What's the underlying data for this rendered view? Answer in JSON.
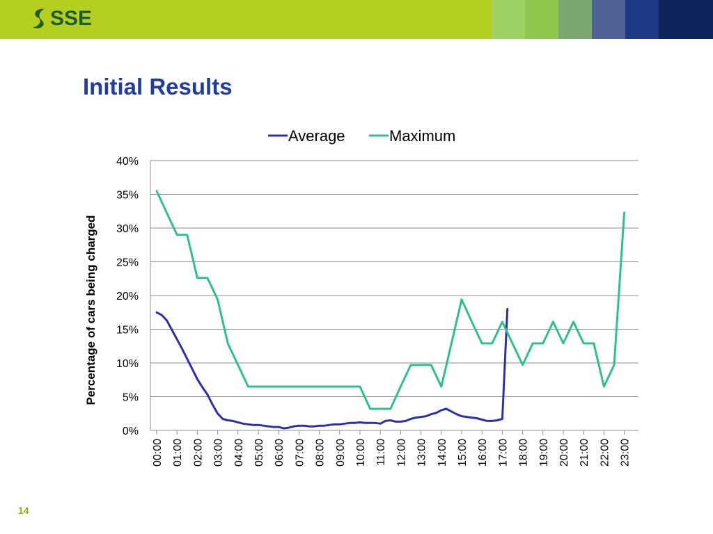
{
  "header": {
    "logo_text": "SSE",
    "colors": {
      "bar": "#b5cf21",
      "blocks": [
        "#9fd264",
        "#8fc84e",
        "#7aa66f",
        "#4f6295",
        "#1c3a84",
        "#0c2459"
      ]
    }
  },
  "slide": {
    "title": "Initial Results",
    "page_number": "14"
  },
  "chart_data": {
    "type": "line",
    "ylabel": "Percentage of cars being charged",
    "ylim": [
      0,
      40
    ],
    "yticks": [
      0,
      5,
      10,
      15,
      20,
      25,
      30,
      35,
      40
    ],
    "ytick_labels": [
      "0%",
      "5%",
      "10%",
      "15%",
      "20%",
      "25%",
      "30%",
      "35%",
      "40%"
    ],
    "x_range": [
      0,
      23.5
    ],
    "xtick_labels": [
      "00:00",
      "01:00",
      "02:00",
      "03:00",
      "04:00",
      "05:00",
      "06:00",
      "07:00",
      "08:00",
      "09:00",
      "10:00",
      "11:00",
      "12:00",
      "13:00",
      "14:00",
      "15:00",
      "16:00",
      "17:00",
      "18:00",
      "19:00",
      "20:00",
      "21:00",
      "22:00",
      "23:00"
    ],
    "grid": true,
    "legend_position": "top",
    "series": [
      {
        "name": "Average",
        "color": "#2e2ea8",
        "points": [
          [
            0,
            17.5
          ],
          [
            0.25,
            17.1
          ],
          [
            0.5,
            16.3
          ],
          [
            0.75,
            14.9
          ],
          [
            1,
            13.5
          ],
          [
            1.25,
            12.1
          ],
          [
            1.5,
            10.6
          ],
          [
            1.75,
            9.1
          ],
          [
            2,
            7.6
          ],
          [
            2.25,
            6.4
          ],
          [
            2.5,
            5.3
          ],
          [
            2.75,
            3.8
          ],
          [
            3,
            2.5
          ],
          [
            3.25,
            1.7
          ],
          [
            3.5,
            1.5
          ],
          [
            3.75,
            1.4
          ],
          [
            4,
            1.2
          ],
          [
            4.25,
            1.0
          ],
          [
            4.5,
            0.9
          ],
          [
            4.75,
            0.8
          ],
          [
            5,
            0.8
          ],
          [
            5.25,
            0.7
          ],
          [
            5.5,
            0.6
          ],
          [
            5.75,
            0.5
          ],
          [
            6,
            0.5
          ],
          [
            6.25,
            0.3
          ],
          [
            6.5,
            0.4
          ],
          [
            6.75,
            0.6
          ],
          [
            7,
            0.7
          ],
          [
            7.25,
            0.7
          ],
          [
            7.5,
            0.6
          ],
          [
            7.75,
            0.6
          ],
          [
            8,
            0.7
          ],
          [
            8.25,
            0.7
          ],
          [
            8.5,
            0.8
          ],
          [
            8.75,
            0.9
          ],
          [
            9,
            0.9
          ],
          [
            9.25,
            1.0
          ],
          [
            9.5,
            1.1
          ],
          [
            9.75,
            1.1
          ],
          [
            10,
            1.2
          ],
          [
            10.25,
            1.1
          ],
          [
            10.5,
            1.1
          ],
          [
            10.75,
            1.1
          ],
          [
            11,
            1.0
          ],
          [
            11.25,
            1.4
          ],
          [
            11.5,
            1.5
          ],
          [
            11.75,
            1.3
          ],
          [
            12,
            1.3
          ],
          [
            12.25,
            1.4
          ],
          [
            12.5,
            1.7
          ],
          [
            12.75,
            1.9
          ],
          [
            13,
            2.0
          ],
          [
            13.25,
            2.1
          ],
          [
            13.5,
            2.4
          ],
          [
            13.75,
            2.6
          ],
          [
            14,
            3.0
          ],
          [
            14.25,
            3.2
          ],
          [
            14.5,
            2.8
          ],
          [
            14.75,
            2.4
          ],
          [
            15,
            2.1
          ],
          [
            15.25,
            2.0
          ],
          [
            15.5,
            1.9
          ],
          [
            15.75,
            1.8
          ],
          [
            16,
            1.6
          ],
          [
            16.25,
            1.4
          ],
          [
            16.5,
            1.4
          ],
          [
            16.75,
            1.5
          ],
          [
            17,
            1.7
          ],
          [
            17.25,
            18.0
          ]
        ]
      },
      {
        "name": "Maximum",
        "color": "#2dbf8e",
        "points": [
          [
            0,
            35.5
          ],
          [
            1,
            29
          ],
          [
            1.5,
            29
          ],
          [
            2,
            22.6
          ],
          [
            2.5,
            22.6
          ],
          [
            3,
            19.4
          ],
          [
            3.5,
            12.9
          ],
          [
            4,
            9.7
          ],
          [
            4.5,
            6.5
          ],
          [
            5,
            6.5
          ],
          [
            6,
            6.5
          ],
          [
            7,
            6.5
          ],
          [
            8,
            6.5
          ],
          [
            9,
            6.5
          ],
          [
            10,
            6.5
          ],
          [
            10.5,
            3.2
          ],
          [
            11,
            3.2
          ],
          [
            11.5,
            3.2
          ],
          [
            12,
            6.5
          ],
          [
            12.5,
            9.7
          ],
          [
            13,
            9.7
          ],
          [
            13.5,
            9.7
          ],
          [
            14,
            6.5
          ],
          [
            14.5,
            12.9
          ],
          [
            15,
            19.4
          ],
          [
            15.5,
            16.1
          ],
          [
            16,
            12.9
          ],
          [
            16.5,
            12.9
          ],
          [
            17,
            16.1
          ],
          [
            17.5,
            12.9
          ],
          [
            18,
            9.7
          ],
          [
            18.5,
            12.9
          ],
          [
            19,
            12.9
          ],
          [
            19.5,
            16.1
          ],
          [
            20,
            12.9
          ],
          [
            20.5,
            16.1
          ],
          [
            21,
            12.9
          ],
          [
            21.5,
            12.9
          ],
          [
            22,
            6.5
          ],
          [
            22.5,
            9.7
          ],
          [
            23,
            32.3
          ]
        ]
      }
    ]
  }
}
